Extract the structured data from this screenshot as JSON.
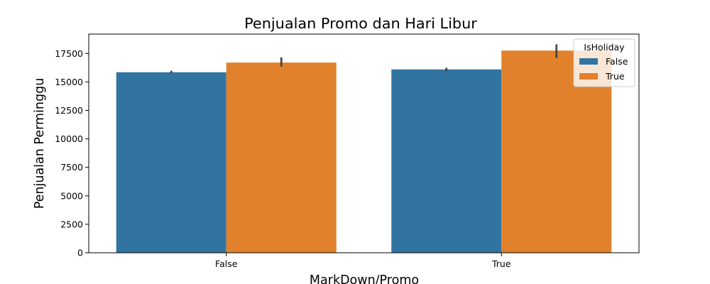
{
  "chart_data": {
    "type": "bar",
    "title": "Penjualan Promo dan Hari Libur",
    "xlabel": "MarkDown/Promo",
    "ylabel": "Penjualan Perminggu",
    "categories": [
      "False",
      "True"
    ],
    "ylim": [
      0,
      19200
    ],
    "yticks": [
      0,
      2500,
      5000,
      7500,
      10000,
      12500,
      15000,
      17500
    ],
    "ytick_labels": [
      "0",
      "2500",
      "5000",
      "7500",
      "10000",
      "12500",
      "15000",
      "17500"
    ],
    "legend": {
      "title": "IsHoliday",
      "placement": "top-right"
    },
    "series": [
      {
        "name": "False",
        "color": "#3274a1",
        "values": [
          15850,
          16100
        ],
        "error_low": [
          15750,
          15950
        ],
        "error_high": [
          15980,
          16250
        ]
      },
      {
        "name": "True",
        "color": "#e1812c",
        "values": [
          16700,
          17750
        ],
        "error_low": [
          16350,
          17100
        ],
        "error_high": [
          17150,
          18300
        ]
      }
    ],
    "grid": false
  }
}
